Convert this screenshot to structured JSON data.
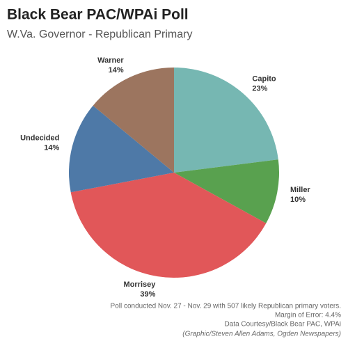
{
  "chart_data": {
    "type": "pie",
    "title": "Black Bear PAC/WPAi Poll",
    "subtitle": "W.Va. Governor - Republican Primary",
    "categories": [
      "Capito",
      "Miller",
      "Morrisey",
      "Undecided",
      "Warner"
    ],
    "values": [
      23,
      10,
      39,
      14,
      14
    ],
    "value_labels": [
      "23%",
      "10%",
      "39%",
      "14%",
      "14%"
    ],
    "colors": [
      "#76b7b2",
      "#59a14f",
      "#e15759",
      "#4e79a7",
      "#9c755f"
    ],
    "notes": [
      "Poll conducted Nov. 27 - Nov. 29 with  507 likely Republican primary voters.",
      "Margin of Error: 4.4%",
      "Data Courtesy/Black Bear PAC, WPAi"
    ],
    "credit": "(Graphic/Steven Allen Adams, Ogden Newspapers)"
  }
}
